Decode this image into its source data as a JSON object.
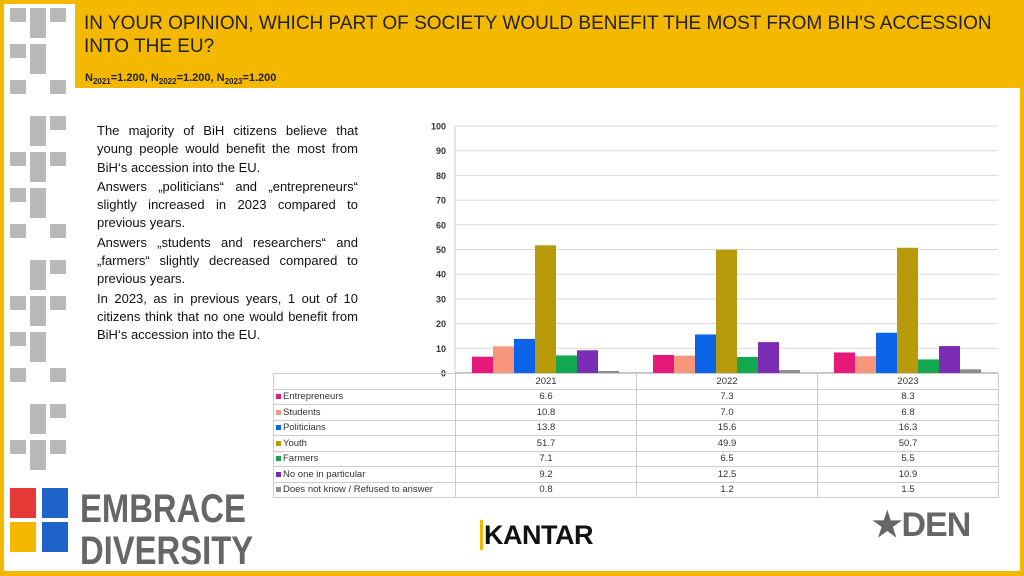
{
  "header": {
    "title": "IN YOUR OPINION, WHICH PART OF SOCIETY WOULD BENEFIT THE MOST FROM BIH'S ACCESSION INTO THE EU?",
    "n": [
      {
        "label": "N",
        "sub": "2021",
        "val": "=1.200, "
      },
      {
        "label": "N",
        "sub": "2022",
        "val": "=1.200, "
      },
      {
        "label": "N",
        "sub": "2023",
        "val": "=1.200"
      }
    ]
  },
  "summary": [
    "The majority of BiH citizens believe that young people would benefit the most from BiH‘s accession into the EU.",
    "Answers „politicians“ and „entrepreneurs“ slightly increased in 2023 compared to previous years.",
    "Answers „students and researchers“ and „farmers“ slightly decreased compared to previous years.",
    "In 2023, as in previous years, 1 out of 10 citizens think that no one would benefit from BiH‘s accession into the EU."
  ],
  "chart_data": {
    "type": "bar",
    "categories": [
      "2021",
      "2022",
      "2023"
    ],
    "ylim": [
      0,
      100
    ],
    "yticks": [
      0,
      10,
      20,
      30,
      40,
      50,
      60,
      70,
      80,
      90,
      100
    ],
    "grid": true,
    "legend": "data-table-below",
    "series": [
      {
        "name": "Entrepreneurs",
        "color": "#e6197a",
        "values": [
          6.6,
          7.3,
          8.3
        ]
      },
      {
        "name": "Students",
        "color": "#f7967a",
        "values": [
          10.8,
          7.0,
          6.8
        ]
      },
      {
        "name": "Politicians",
        "color": "#0b64e8",
        "values": [
          13.8,
          15.6,
          16.3
        ]
      },
      {
        "name": "Youth",
        "color": "#b89a0a",
        "values": [
          51.7,
          49.9,
          50.7
        ]
      },
      {
        "name": "Farmers",
        "color": "#13a84f",
        "values": [
          7.1,
          6.5,
          5.5
        ]
      },
      {
        "name": "No one in particular",
        "color": "#7b2cb5",
        "values": [
          9.2,
          12.5,
          10.9
        ]
      },
      {
        "name": "Does not know / Refused to answer",
        "color": "#8c8c8c",
        "values": [
          0.8,
          1.2,
          1.5
        ]
      }
    ]
  },
  "logos": {
    "left": "EMBRACE DIVERSITY",
    "center": "KANTAR",
    "right": "DEN"
  }
}
